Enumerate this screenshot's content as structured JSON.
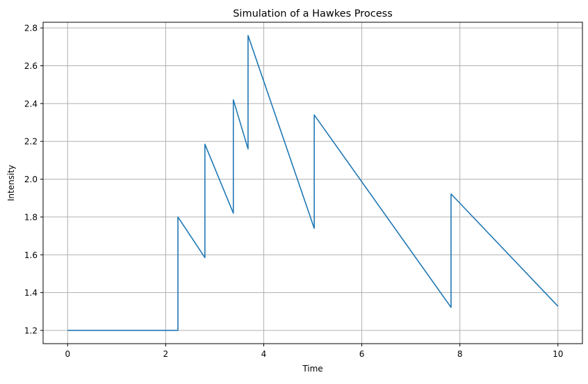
{
  "chart_data": {
    "type": "line",
    "title": "Simulation of a Hawkes Process",
    "xlabel": "Time",
    "ylabel": "Intensity",
    "xlim": [
      -0.5,
      10.5
    ],
    "ylim": [
      1.13,
      2.83
    ],
    "xticks": [
      0,
      2,
      4,
      6,
      8,
      10
    ],
    "yticks": [
      1.2,
      1.4,
      1.6,
      1.8,
      2.0,
      2.2,
      2.4,
      2.6,
      2.8
    ],
    "xtick_labels": [
      "0",
      "2",
      "4",
      "6",
      "8",
      "10"
    ],
    "ytick_labels": [
      "1.2",
      "1.4",
      "1.6",
      "1.8",
      "2.0",
      "2.2",
      "2.4",
      "2.6",
      "2.8"
    ],
    "grid": true,
    "line_color": "#1f77b4",
    "baseline_intensity": 1.2,
    "event_times": [
      2.25,
      2.8,
      3.38,
      3.68,
      5.03,
      7.82
    ],
    "series": [
      {
        "x": [
          0,
          2.25,
          2.25,
          2.8,
          2.8,
          3.38,
          3.38,
          3.68,
          3.68,
          5.03,
          5.03,
          7.82,
          7.82,
          10
        ],
        "y": [
          1.2,
          1.2,
          1.8,
          1.585,
          2.185,
          1.82,
          2.42,
          2.16,
          2.76,
          1.74,
          2.34,
          1.322,
          1.922,
          1.328
        ]
      }
    ]
  }
}
